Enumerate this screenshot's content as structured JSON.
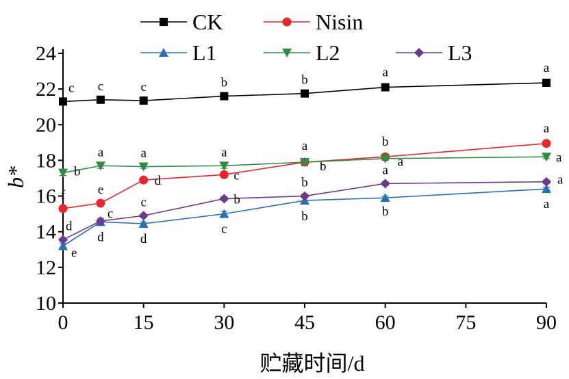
{
  "chart_data": {
    "type": "line",
    "title": "",
    "xlabel": "贮藏时间/d",
    "ylabel": "b*",
    "xlim": [
      0,
      90
    ],
    "ylim": [
      10,
      24
    ],
    "xticks": [
      0,
      15,
      30,
      45,
      60,
      75,
      90
    ],
    "yticks": [
      10,
      12,
      14,
      16,
      18,
      20,
      22,
      24
    ],
    "x": [
      0,
      7,
      15,
      30,
      45,
      60,
      90
    ],
    "legend_position": "top",
    "series": [
      {
        "name": "CK",
        "color": "#000000",
        "marker": "square",
        "values": [
          21.3,
          21.4,
          21.35,
          21.6,
          21.75,
          22.1,
          22.35
        ],
        "errors": [
          0.1,
          0.1,
          0.1,
          0.1,
          0.1,
          0.1,
          0.1
        ],
        "labels": [
          "c",
          "c",
          "c",
          "b",
          "b",
          "a",
          "a"
        ]
      },
      {
        "name": "Nisin",
        "color": "#e8262b",
        "marker": "circle",
        "values": [
          15.3,
          15.6,
          16.9,
          17.2,
          17.9,
          18.2,
          18.95
        ],
        "errors": [
          0.15,
          0.1,
          0.1,
          0.15,
          0.2,
          0.15,
          0.15
        ],
        "labels": [
          "f",
          "e",
          "d",
          "c",
          "b",
          "b",
          "a"
        ]
      },
      {
        "name": "L1",
        "color": "#2b6fb2",
        "marker": "triangle-up",
        "values": [
          13.2,
          14.55,
          14.45,
          15.0,
          15.75,
          15.9,
          16.4
        ],
        "errors": [
          0.15,
          0.1,
          0.1,
          0.15,
          0.15,
          0.1,
          0.1
        ],
        "labels": [
          "e",
          "d",
          "d",
          "c",
          "b",
          "b",
          "a"
        ]
      },
      {
        "name": "L2",
        "color": "#2f8d42",
        "marker": "triangle-down",
        "values": [
          17.3,
          17.7,
          17.65,
          17.7,
          17.9,
          18.1,
          18.2
        ],
        "errors": [
          0.15,
          0.15,
          0.1,
          0.15,
          0.15,
          0.1,
          0.1
        ],
        "labels": [
          "b",
          "a",
          "a",
          "a",
          "a",
          "a",
          "a"
        ]
      },
      {
        "name": "L3",
        "color": "#6b3a8a",
        "marker": "diamond",
        "values": [
          13.55,
          14.6,
          14.9,
          15.85,
          16.0,
          16.7,
          16.8
        ],
        "errors": [
          0.1,
          0.15,
          0.1,
          0.1,
          0.1,
          0.1,
          0.1
        ],
        "labels": [
          "d",
          "c",
          "c",
          "b",
          "b",
          "a",
          "a"
        ]
      }
    ]
  }
}
